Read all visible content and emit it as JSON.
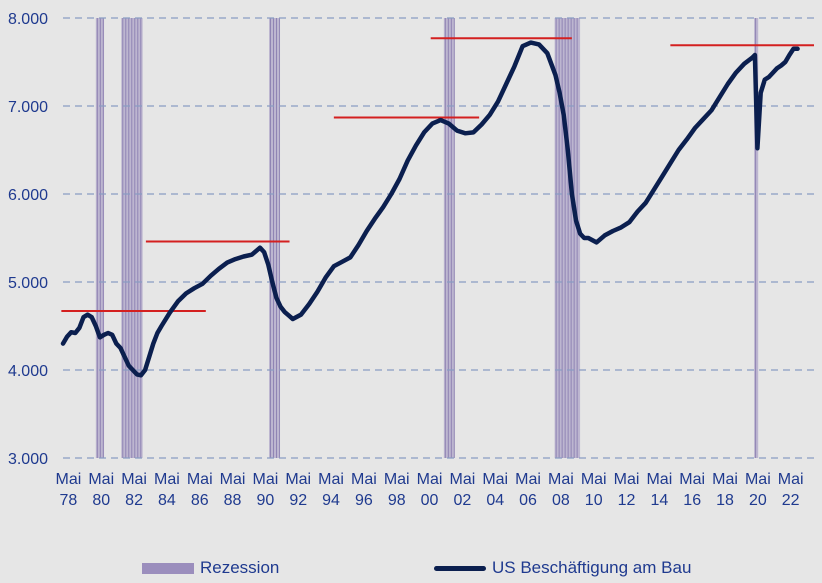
{
  "chart_data": {
    "type": "line",
    "title": "",
    "xlabel": "",
    "ylabel": "",
    "ylim": [
      3000,
      8000
    ],
    "y_ticks": [
      {
        "value": 3000,
        "label": "3.000"
      },
      {
        "value": 4000,
        "label": "4.000"
      },
      {
        "value": 5000,
        "label": "5.000"
      },
      {
        "value": 6000,
        "label": "6.000"
      },
      {
        "value": 7000,
        "label": "7.000"
      },
      {
        "value": 8000,
        "label": "8.000"
      }
    ],
    "xlim": [
      1978.0,
      2023.75
    ],
    "x_ticks": [
      {
        "value": 1978.33,
        "month": "Mai",
        "year": "78"
      },
      {
        "value": 1980.33,
        "month": "Mai",
        "year": "80"
      },
      {
        "value": 1982.33,
        "month": "Mai",
        "year": "82"
      },
      {
        "value": 1984.33,
        "month": "Mai",
        "year": "84"
      },
      {
        "value": 1986.33,
        "month": "Mai",
        "year": "86"
      },
      {
        "value": 1988.33,
        "month": "Mai",
        "year": "88"
      },
      {
        "value": 1990.33,
        "month": "Mai",
        "year": "90"
      },
      {
        "value": 1992.33,
        "month": "Mai",
        "year": "92"
      },
      {
        "value": 1994.33,
        "month": "Mai",
        "year": "94"
      },
      {
        "value": 1996.33,
        "month": "Mai",
        "year": "96"
      },
      {
        "value": 1998.33,
        "month": "Mai",
        "year": "98"
      },
      {
        "value": 2000.33,
        "month": "Mai",
        "year": "00"
      },
      {
        "value": 2002.33,
        "month": "Mai",
        "year": "02"
      },
      {
        "value": 2004.33,
        "month": "Mai",
        "year": "04"
      },
      {
        "value": 2006.33,
        "month": "Mai",
        "year": "06"
      },
      {
        "value": 2008.33,
        "month": "Mai",
        "year": "08"
      },
      {
        "value": 2010.33,
        "month": "Mai",
        "year": "10"
      },
      {
        "value": 2012.33,
        "month": "Mai",
        "year": "12"
      },
      {
        "value": 2014.33,
        "month": "Mai",
        "year": "14"
      },
      {
        "value": 2016.33,
        "month": "Mai",
        "year": "16"
      },
      {
        "value": 2018.33,
        "month": "Mai",
        "year": "18"
      },
      {
        "value": 2020.33,
        "month": "Mai",
        "year": "20"
      },
      {
        "value": 2022.33,
        "month": "Mai",
        "year": "22"
      }
    ],
    "grid": {
      "horizontal": true,
      "style": "dashed"
    },
    "legend_position": "bottom",
    "colors": {
      "line": "#0b1f4f",
      "recession": "#9b8ebd",
      "peak_lines": "#d42020",
      "ticks": "#1f3a8f",
      "grid": "#8a9cc2",
      "background": "#e6e6e6"
    },
    "recessions": [
      {
        "start": 1980.0,
        "end": 1980.5
      },
      {
        "start": 1981.55,
        "end": 1982.85
      },
      {
        "start": 1990.55,
        "end": 1991.2
      },
      {
        "start": 2001.2,
        "end": 2001.85
      },
      {
        "start": 2007.95,
        "end": 2009.5
      },
      {
        "start": 2020.1,
        "end": 2020.35
      }
    ],
    "peak_lines": [
      {
        "start": 1977.9,
        "end": 1986.7,
        "value": 4670
      },
      {
        "start": 1983.05,
        "end": 1991.8,
        "value": 5460
      },
      {
        "start": 1994.5,
        "end": 2003.35,
        "value": 6870
      },
      {
        "start": 2000.4,
        "end": 2009.0,
        "value": 7770
      },
      {
        "start": 2015.0,
        "end": 2023.75,
        "value": 7690
      }
    ],
    "series": [
      {
        "name": "US Beschäftigung am Bau",
        "x": [
          1978.0,
          1978.25,
          1978.5,
          1978.75,
          1979.0,
          1979.25,
          1979.5,
          1979.75,
          1980.0,
          1980.25,
          1980.5,
          1980.75,
          1981.0,
          1981.25,
          1981.5,
          1981.75,
          1982.0,
          1982.25,
          1982.5,
          1982.75,
          1983.0,
          1983.25,
          1983.5,
          1983.75,
          1984.0,
          1984.5,
          1985.0,
          1985.5,
          1986.0,
          1986.5,
          1987.0,
          1987.5,
          1988.0,
          1988.5,
          1989.0,
          1989.5,
          1990.0,
          1990.25,
          1990.5,
          1990.75,
          1991.0,
          1991.25,
          1991.5,
          1991.75,
          1992.0,
          1992.5,
          1993.0,
          1993.5,
          1994.0,
          1994.5,
          1995.0,
          1995.5,
          1996.0,
          1996.5,
          1997.0,
          1997.5,
          1998.0,
          1998.5,
          1999.0,
          1999.5,
          2000.0,
          2000.5,
          2001.0,
          2001.5,
          2002.0,
          2002.5,
          2003.0,
          2003.5,
          2004.0,
          2004.5,
          2005.0,
          2005.5,
          2006.0,
          2006.5,
          2007.0,
          2007.5,
          2008.0,
          2008.25,
          2008.5,
          2008.75,
          2009.0,
          2009.25,
          2009.5,
          2009.75,
          2010.0,
          2010.5,
          2011.0,
          2011.5,
          2012.0,
          2012.5,
          2013.0,
          2013.5,
          2014.0,
          2014.5,
          2015.0,
          2015.5,
          2016.0,
          2016.5,
          2017.0,
          2017.5,
          2018.0,
          2018.5,
          2019.0,
          2019.5,
          2020.0,
          2020.15,
          2020.3,
          2020.5,
          2020.75,
          2021.0,
          2021.25,
          2021.5,
          2021.75,
          2022.0,
          2022.25,
          2022.5,
          2022.75
        ],
        "values": [
          4300,
          4380,
          4430,
          4420,
          4480,
          4600,
          4630,
          4600,
          4500,
          4370,
          4400,
          4420,
          4400,
          4300,
          4250,
          4150,
          4050,
          4000,
          3950,
          3940,
          4000,
          4150,
          4300,
          4420,
          4500,
          4650,
          4780,
          4870,
          4930,
          4980,
          5070,
          5150,
          5220,
          5260,
          5290,
          5310,
          5390,
          5340,
          5200,
          5000,
          4820,
          4720,
          4660,
          4620,
          4580,
          4630,
          4750,
          4890,
          5050,
          5180,
          5230,
          5280,
          5420,
          5580,
          5720,
          5850,
          6000,
          6170,
          6380,
          6550,
          6700,
          6800,
          6840,
          6800,
          6720,
          6690,
          6700,
          6790,
          6900,
          7050,
          7250,
          7450,
          7680,
          7720,
          7700,
          7600,
          7350,
          7150,
          6900,
          6500,
          6000,
          5700,
          5550,
          5500,
          5500,
          5450,
          5530,
          5580,
          5620,
          5680,
          5800,
          5900,
          6050,
          6200,
          6350,
          6500,
          6620,
          6750,
          6850,
          6950,
          7100,
          7250,
          7380,
          7480,
          7550,
          7580,
          6520,
          7150,
          7300,
          7330,
          7380,
          7430,
          7460,
          7500,
          7580,
          7650,
          7650
        ]
      }
    ]
  },
  "legend": {
    "recession_label": "Rezession",
    "series_label": "US Beschäftigung am Bau"
  }
}
